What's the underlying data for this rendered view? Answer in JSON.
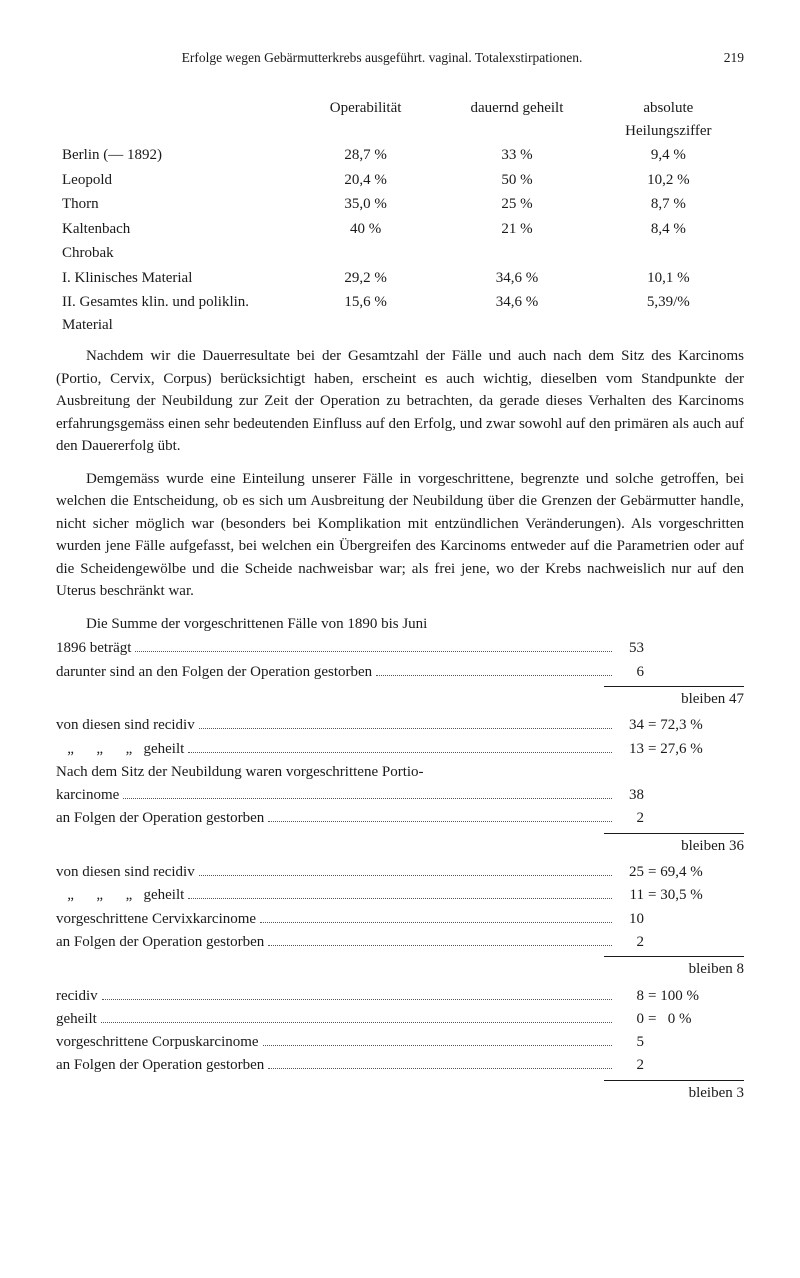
{
  "header": {
    "running_title": "Erfolge wegen Gebärmutterkrebs ausgeführt. vaginal. Totalexstirpationen.",
    "page_number": "219"
  },
  "table1": {
    "headers": [
      "",
      "Operabilität",
      "dauernd geheilt",
      "absolute Heilungsziffer"
    ],
    "rows": [
      [
        "Berlin (— 1892)",
        "28,7 %",
        "33 %",
        "9,4 %"
      ],
      [
        "Leopold",
        "20,4 %",
        "50 %",
        "10,2 %"
      ],
      [
        "Thorn",
        "35,0 %",
        "25 %",
        "8,7 %"
      ],
      [
        "Kaltenbach",
        "40 %",
        "21 %",
        "8,4 %"
      ],
      [
        "Chrobak",
        "",
        "",
        ""
      ],
      [
        "I. Klinisches Material",
        "29,2 %",
        "34,6 %",
        "10,1 %"
      ],
      [
        "II. Gesamtes klin. und poliklin. Material",
        "15,6 %",
        "34,6 %",
        "5,39/%"
      ]
    ]
  },
  "para1": "Nachdem wir die Dauerresultate bei der Gesamtzahl der Fälle und auch nach dem Sitz des Karcinoms (Portio, Cervix, Corpus) berücksichtigt haben, erscheint es auch wichtig, dieselben vom Standpunkte der Ausbreitung der Neubildung zur Zeit der Operation zu betrachten, da gerade dieses Verhalten des Karcinoms erfahrungs­gemäss einen sehr bedeutenden Einfluss auf den Erfolg, und zwar sowohl auf den primären als auch auf den Dauererfolg übt.",
  "para2": "Demgemäss wurde eine Einteilung unserer Fälle in vorgeschrit­tene, begrenzte und solche getroffen, bei welchen die Entscheidung, ob es sich um Ausbreitung der Neubildung über die Grenzen der Gebärmutter handle, nicht sicher möglich war (besonders bei Kom­plikation mit entzündlichen Veränderungen). Als vorgeschritten wurden jene Fälle aufgefasst, bei welchen ein Übergreifen des Kar­cinoms entweder auf die Parametrien oder auf die Scheidengewölbe und die Scheide nachweisbar war; als frei jene, wo der Krebs nach­weislich nur auf den Uterus beschränkt war.",
  "stats_intro": "Die Summe der vorgeschrittenen Fälle von 1890 bis Juni",
  "stats": [
    {
      "label": "1896 beträgt",
      "val": "53",
      "extra": ""
    },
    {
      "label": "darunter sind an den Folgen der Operation gestorben",
      "val": "6",
      "extra": ""
    }
  ],
  "sub1": "bleiben 47",
  "stats2": [
    {
      "label": "von diesen sind recidiv",
      "val": "34",
      "extra": "= 72,3 %"
    },
    {
      "label": "   „      „      „   geheilt",
      "val": "13",
      "extra": "= 27,6 %"
    },
    {
      "label": "Nach dem Sitz der Neubildung waren vorgeschrittene Portio-",
      "plain": true
    },
    {
      "label": "karcinome",
      "val": "38",
      "extra": ""
    },
    {
      "label": "an Folgen der Operation gestorben",
      "val": "2",
      "extra": ""
    }
  ],
  "sub2": "bleiben 36",
  "stats3": [
    {
      "label": "von diesen sind recidiv",
      "val": "25",
      "extra": "= 69,4 %"
    },
    {
      "label": "   „      „      „   geheilt",
      "val": "11",
      "extra": "= 30,5 %"
    },
    {
      "label": "vorgeschrittene Cervixkarcinome",
      "val": "10",
      "extra": ""
    },
    {
      "label": "an Folgen der Operation gestorben",
      "val": "2",
      "extra": ""
    }
  ],
  "sub3": "bleiben 8",
  "stats4": [
    {
      "label": "recidiv",
      "val": "8",
      "extra": "= 100 %"
    },
    {
      "label": "geheilt",
      "val": "0",
      "extra": "=   0 %"
    },
    {
      "label": "vorgeschrittene Corpuskarcinome",
      "val": "5",
      "extra": ""
    },
    {
      "label": "an Folgen der Operation gestorben",
      "val": "2",
      "extra": ""
    }
  ],
  "sub4": "bleiben 3"
}
